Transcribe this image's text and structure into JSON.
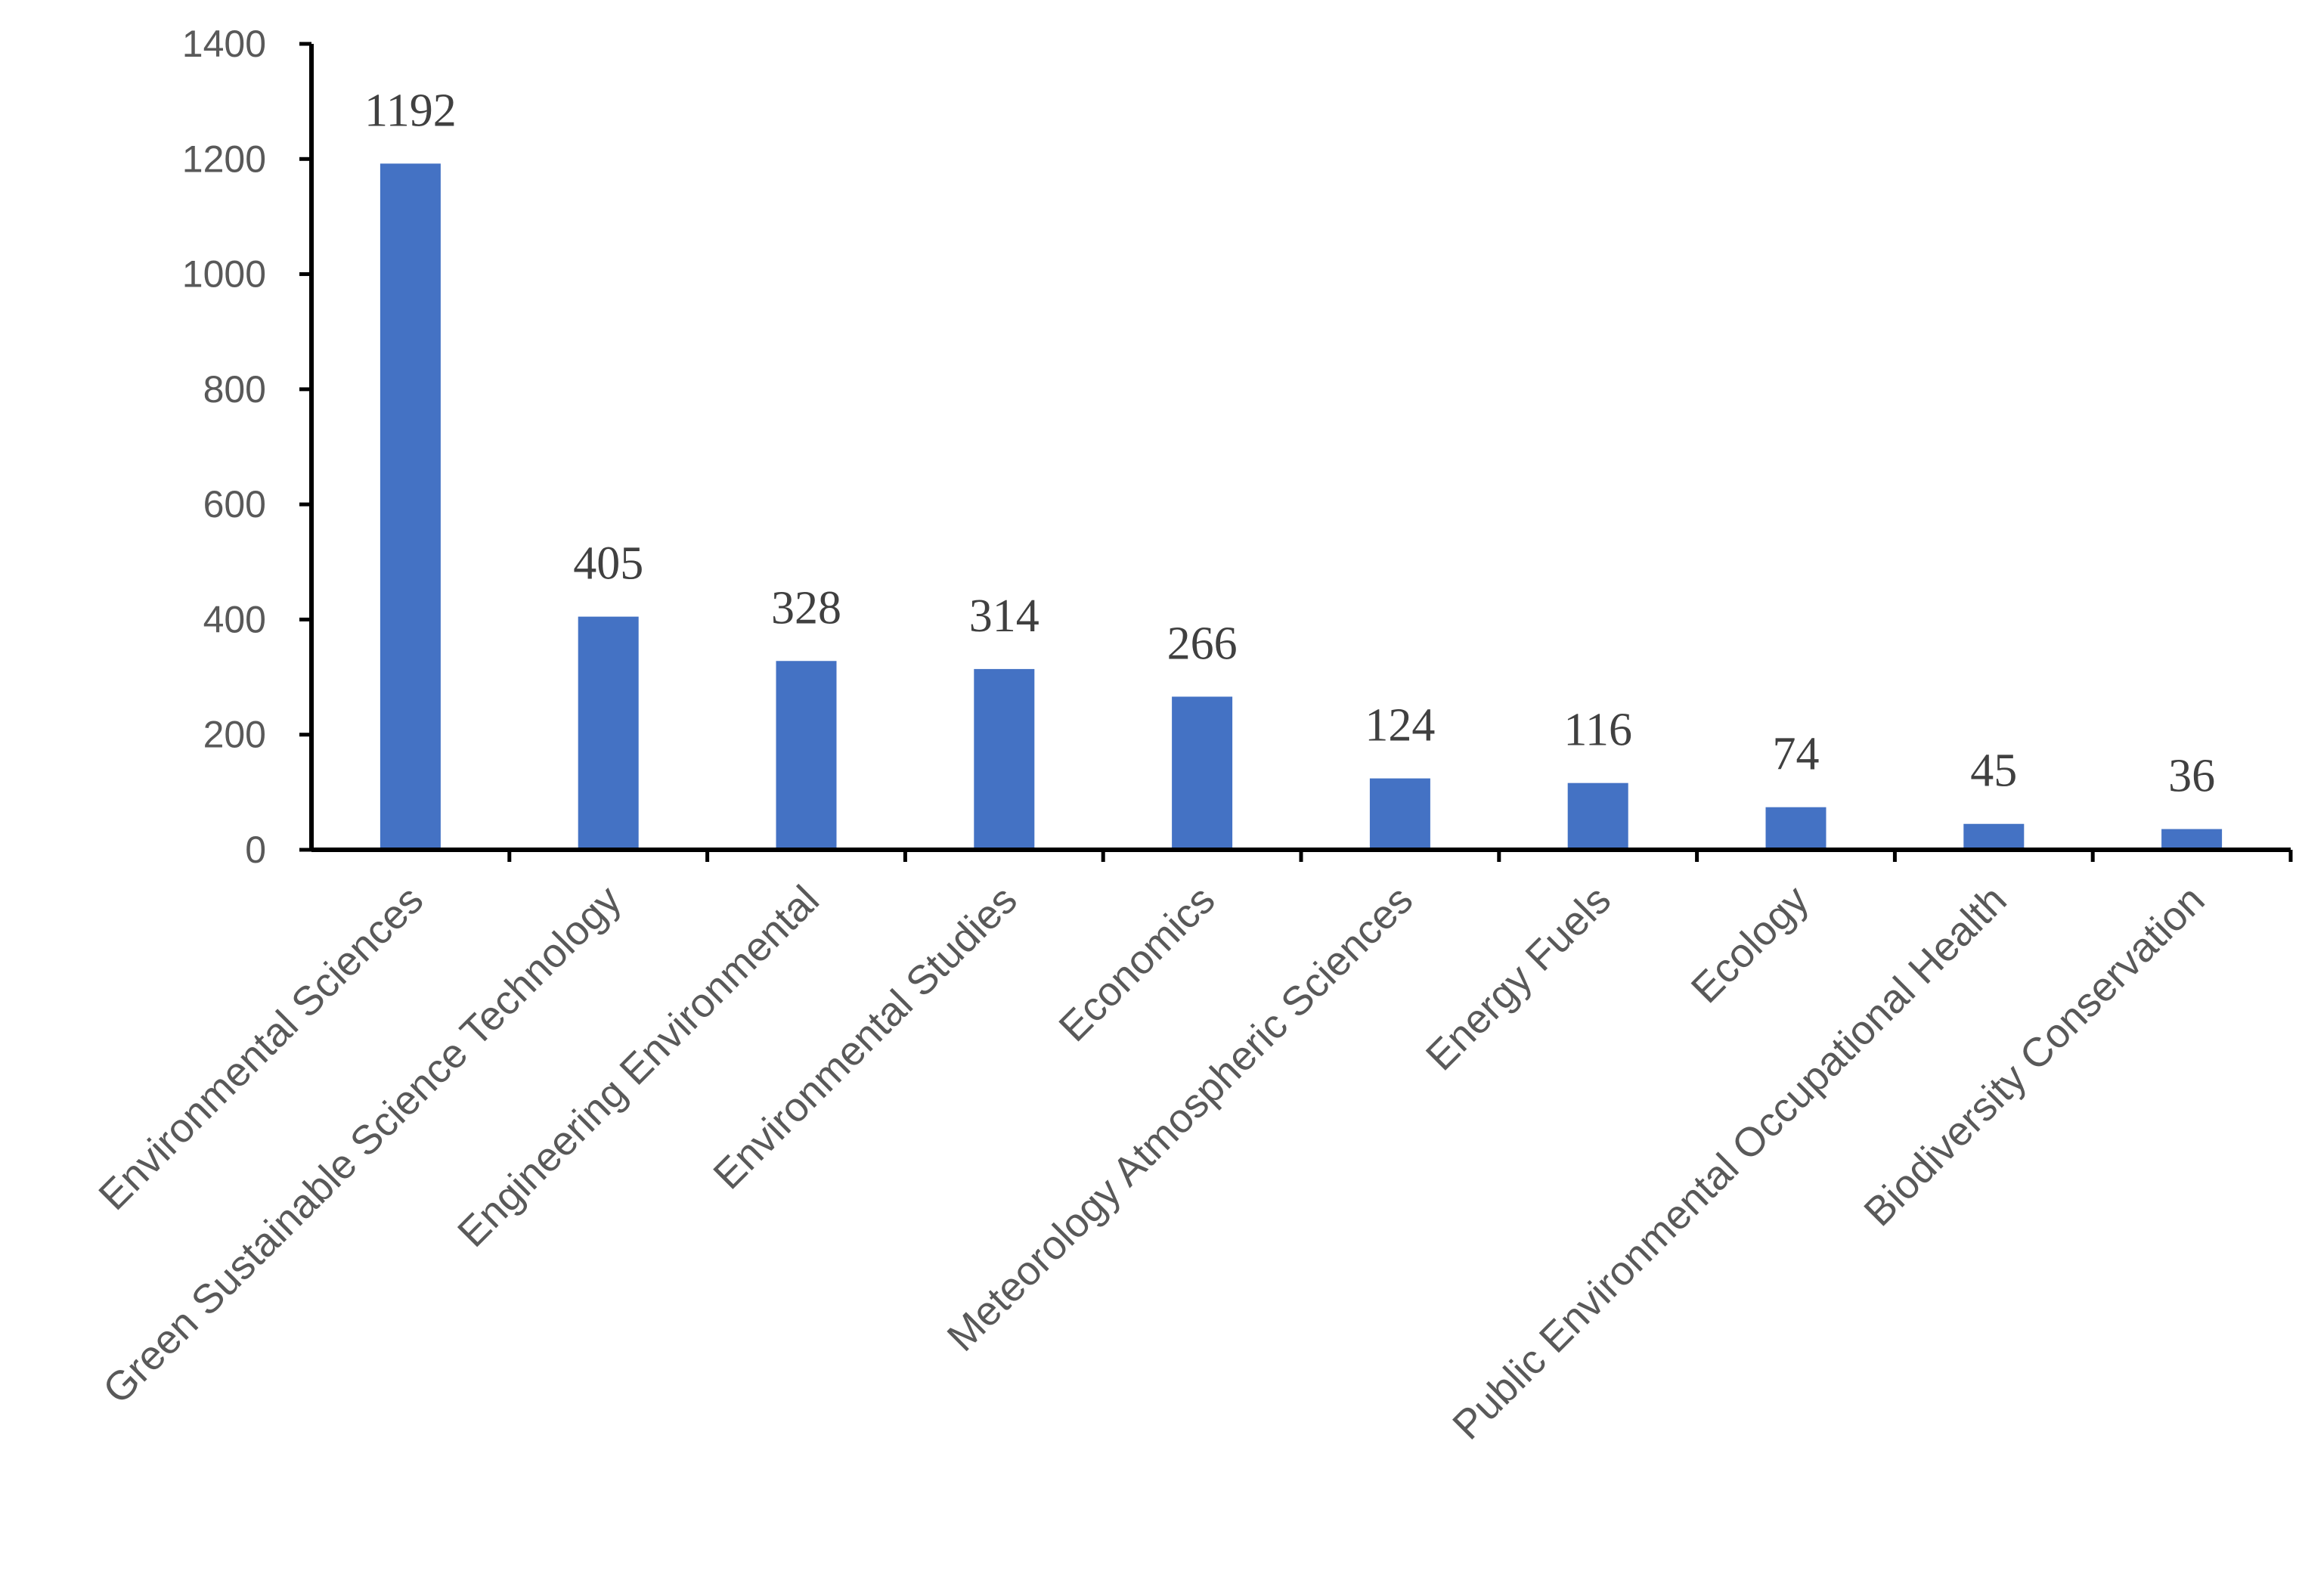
{
  "chart_data": {
    "type": "bar",
    "title": "",
    "xlabel": "",
    "ylabel": "",
    "categories": [
      "Environmental Sciences",
      "Green Sustainable Science Technology",
      "Engineering Environmental",
      "Environmental Studies",
      "Economics",
      "Meteorology Atmospheric Sciences",
      "Energy Fuels",
      "Ecology",
      "Public Environmental Occupational Health",
      "Biodiversity Conservation"
    ],
    "values": [
      1192,
      405,
      328,
      314,
      266,
      124,
      116,
      74,
      45,
      36
    ],
    "data_labels": [
      "1192",
      "405",
      "328",
      "314",
      "266",
      "124",
      "116",
      "74",
      "45",
      "36"
    ],
    "ylim": [
      0,
      1400
    ],
    "yticks": [
      0,
      200,
      400,
      600,
      800,
      1000,
      1200,
      1400
    ],
    "ytick_labels": [
      "0",
      "200",
      "400",
      "600",
      "800",
      "1000",
      "1200",
      "1400"
    ],
    "grid": false,
    "legend": "none",
    "colors": {
      "bar": "#4472C4"
    }
  }
}
